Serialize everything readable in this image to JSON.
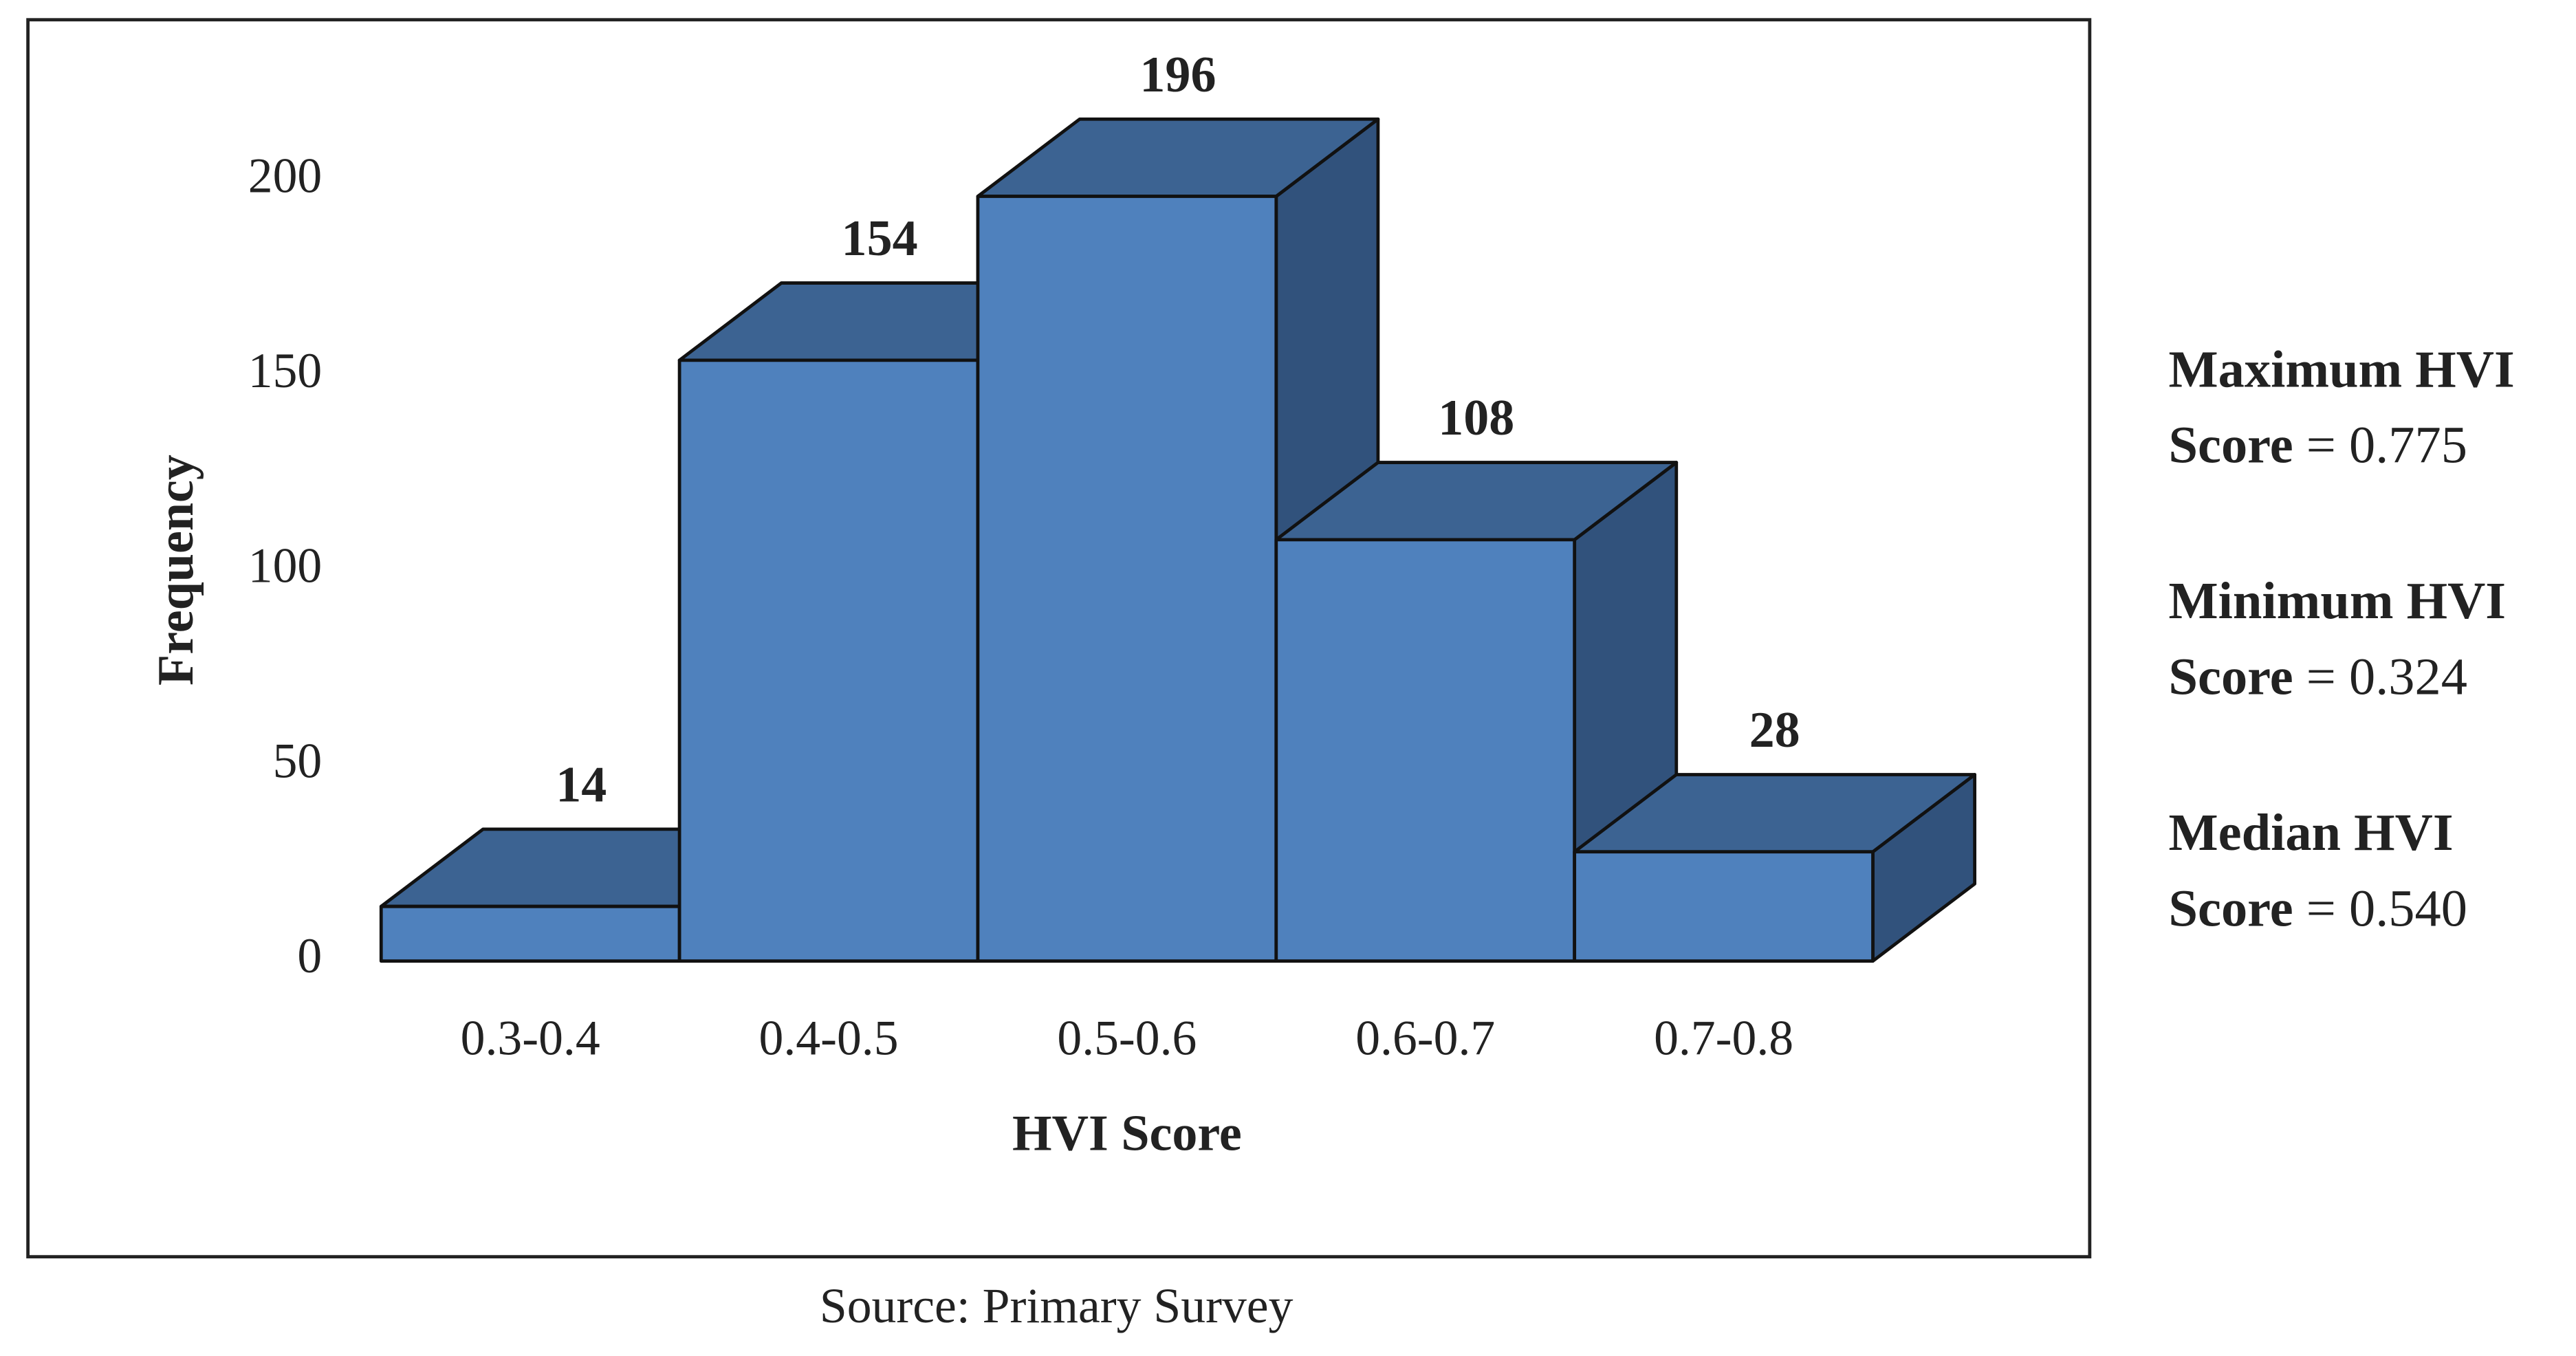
{
  "chart_data": {
    "type": "bar",
    "categories": [
      "0.3-0.4",
      "0.4-0.5",
      "0.5-0.6",
      "0.6-0.7",
      "0.7-0.8"
    ],
    "values": [
      14,
      154,
      196,
      108,
      28
    ],
    "x_label": "HVI Score",
    "y_label": "Frequency",
    "ylim": [
      0,
      200
    ],
    "yticks": [
      0,
      50,
      100,
      150,
      200
    ],
    "colors": {
      "front": "#4f81bd",
      "top": "#3c6392",
      "side": "#31527c"
    },
    "grid": false,
    "source": "Source: Primary Survey",
    "annotations": [
      {
        "line1": "Maximum HVI",
        "line2": "Score",
        "value": "= 0.775"
      },
      {
        "line1": "Minimum HVI",
        "line2": "Score",
        "value": "= 0.324"
      },
      {
        "line1": "Median HVI",
        "line2": "Score",
        "value": "= 0.540"
      }
    ]
  }
}
